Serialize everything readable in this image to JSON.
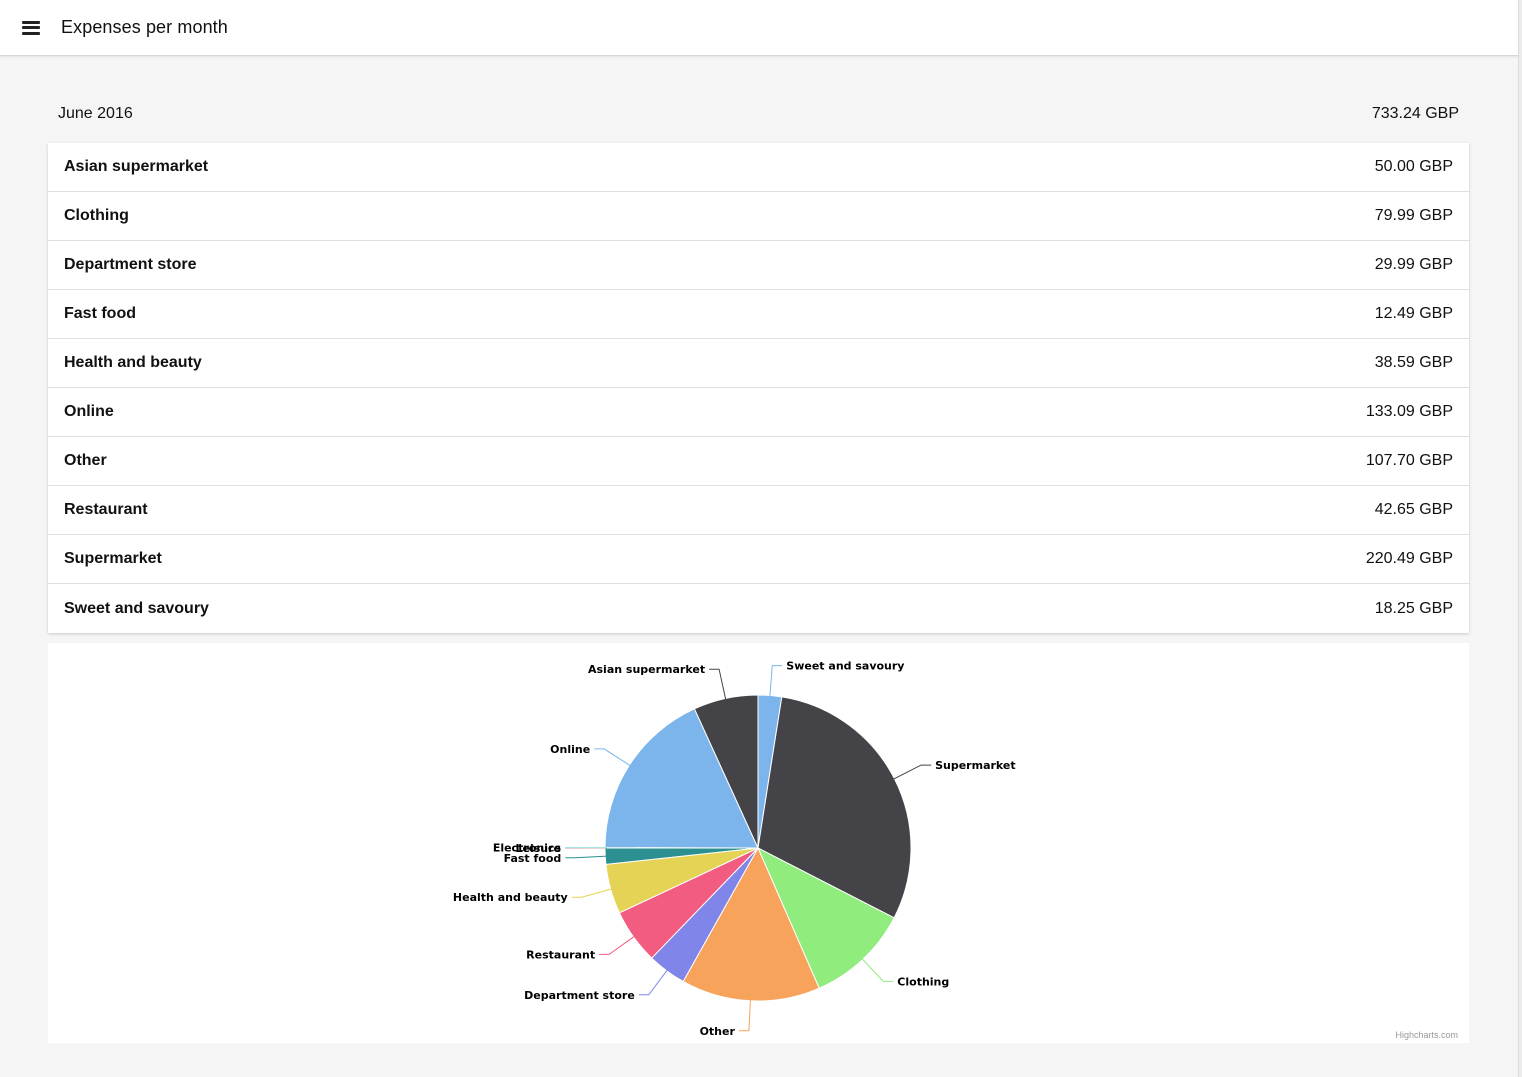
{
  "app": {
    "title": "Expenses per month"
  },
  "summary": {
    "month": "June 2016",
    "total": "733.24 GBP"
  },
  "expenses": [
    {
      "name": "Asian supermarket",
      "amount": "50.00 GBP"
    },
    {
      "name": "Clothing",
      "amount": "79.99 GBP"
    },
    {
      "name": "Department store",
      "amount": "29.99 GBP"
    },
    {
      "name": "Fast food",
      "amount": "12.49 GBP"
    },
    {
      "name": "Health and beauty",
      "amount": "38.59 GBP"
    },
    {
      "name": "Online",
      "amount": "133.09 GBP"
    },
    {
      "name": "Other",
      "amount": "107.70 GBP"
    },
    {
      "name": "Restaurant",
      "amount": "42.65 GBP"
    },
    {
      "name": "Supermarket",
      "amount": "220.49 GBP"
    },
    {
      "name": "Sweet and savoury",
      "amount": "18.25 GBP"
    }
  ],
  "chart_data": {
    "type": "pie",
    "title": "",
    "credit": "Highcharts.com",
    "slices": [
      {
        "name": "Sweet and savoury",
        "value": 18.25,
        "color": "#7cb5ec"
      },
      {
        "name": "Supermarket",
        "value": 220.49,
        "color": "#434348"
      },
      {
        "name": "Clothing",
        "value": 79.99,
        "color": "#90ed7d"
      },
      {
        "name": "Other",
        "value": 107.7,
        "color": "#f7a35c"
      },
      {
        "name": "Department store",
        "value": 29.99,
        "color": "#8085e9"
      },
      {
        "name": "Restaurant",
        "value": 42.65,
        "color": "#f15c80"
      },
      {
        "name": "Health and beauty",
        "value": 38.59,
        "color": "#e4d354"
      },
      {
        "name": "Fast food",
        "value": 12.49,
        "color": "#2b908f"
      },
      {
        "name": "Leisure",
        "value": 0.2,
        "color": "#f45b5b"
      },
      {
        "name": "Electronics",
        "value": 0.1,
        "color": "#91e8e1"
      },
      {
        "name": "Online",
        "value": 133.09,
        "color": "#7cb5ec"
      },
      {
        "name": "Asian supermarket",
        "value": 50.0,
        "color": "#434348"
      }
    ]
  }
}
